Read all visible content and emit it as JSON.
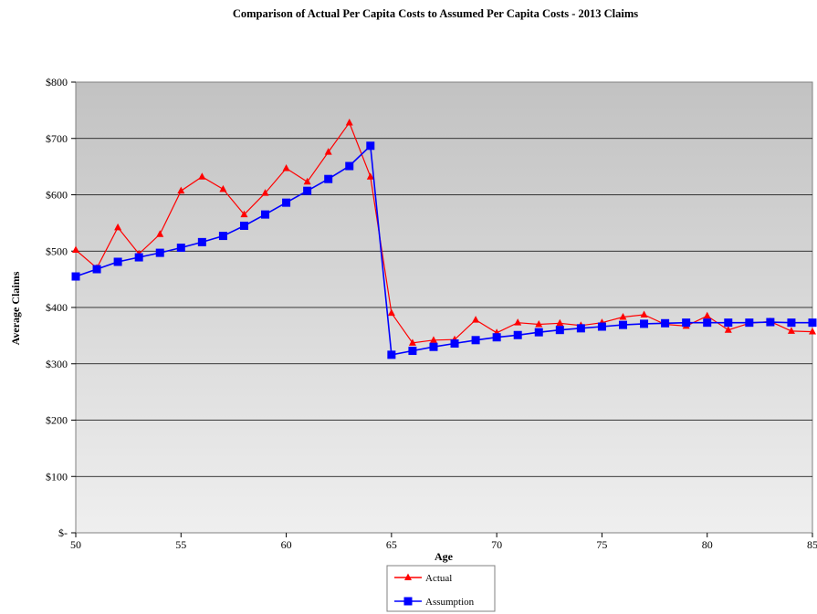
{
  "chart_data": {
    "type": "line",
    "title": "Comparison of Actual Per Capita Costs to Assumed Per Capita Costs - 2013 Claims",
    "xlabel": "Age",
    "ylabel": "Average Claims",
    "xlim": [
      50,
      85
    ],
    "ylim": [
      0,
      800
    ],
    "x_ticks": [
      50,
      55,
      60,
      65,
      70,
      75,
      80,
      85
    ],
    "x_tick_labels": [
      "50",
      "55",
      "60",
      "65",
      "70",
      "75",
      "80",
      "85"
    ],
    "y_ticks": [
      0,
      100,
      200,
      300,
      400,
      500,
      600,
      700,
      800
    ],
    "y_tick_labels": [
      "$-",
      "$100",
      "$200",
      "$300",
      "$400",
      "$500",
      "$600",
      "$700",
      "$800"
    ],
    "grid": true,
    "legend_position": "bottom-center",
    "x": [
      50,
      51,
      52,
      53,
      54,
      55,
      56,
      57,
      58,
      59,
      60,
      61,
      62,
      63,
      64,
      65,
      66,
      67,
      68,
      69,
      70,
      71,
      72,
      73,
      74,
      75,
      76,
      77,
      78,
      79,
      80,
      81,
      82,
      83,
      84,
      85
    ],
    "series": [
      {
        "name": "Actual",
        "color": "#ff0000",
        "marker": "triangle",
        "values": [
          502,
          470,
          542,
          495,
          530,
          607,
          632,
          610,
          565,
          603,
          647,
          623,
          676,
          728,
          632,
          390,
          337,
          342,
          343,
          378,
          355,
          373,
          370,
          372,
          368,
          373,
          383,
          387,
          370,
          367,
          385,
          360,
          372,
          375,
          358,
          357
        ]
      },
      {
        "name": "Assumption",
        "color": "#0000ff",
        "marker": "square",
        "values": [
          455,
          468,
          481,
          489,
          497,
          506,
          516,
          527,
          545,
          565,
          586,
          607,
          628,
          651,
          687,
          316,
          323,
          330,
          336,
          342,
          347,
          351,
          356,
          360,
          363,
          366,
          369,
          371,
          372,
          373,
          373,
          373,
          373,
          374,
          373,
          373
        ]
      }
    ]
  }
}
